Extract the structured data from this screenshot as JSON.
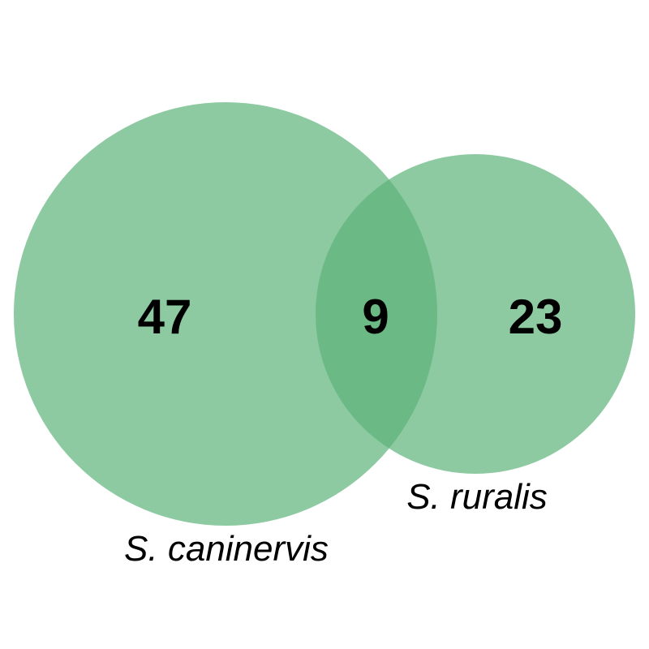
{
  "colors": {
    "circle_fill": "#5cb37a",
    "background": "#ffffff",
    "text": "#000000"
  },
  "sets": [
    {
      "label": "S. caninervis",
      "unique_count": "47"
    },
    {
      "label": "S. ruralis",
      "unique_count": "23"
    }
  ],
  "intersection": {
    "count": "9"
  }
}
